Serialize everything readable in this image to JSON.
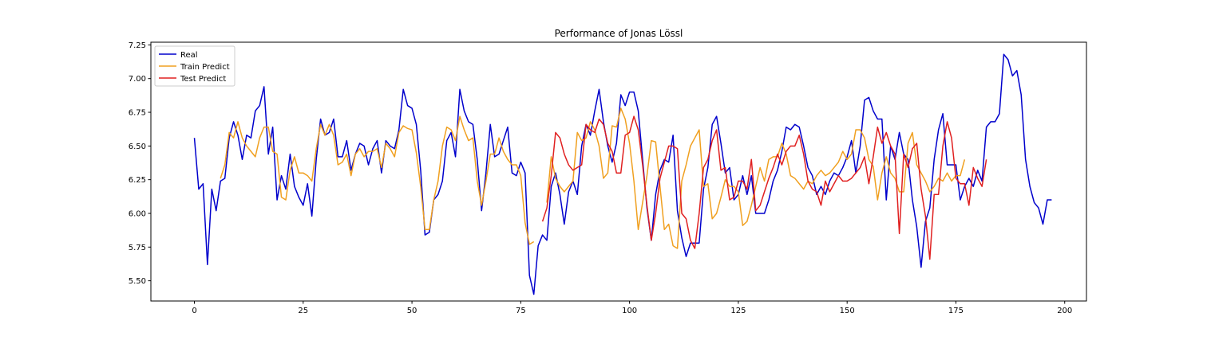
{
  "chart_data": {
    "type": "line",
    "title": "Performance of Jonas Lössl",
    "xlabel": "",
    "ylabel": "",
    "xlim": [
      -10,
      205
    ],
    "ylim": [
      5.35,
      7.27
    ],
    "xticks": [
      0,
      25,
      50,
      75,
      100,
      125,
      150,
      175,
      200
    ],
    "yticks": [
      5.5,
      5.75,
      6.0,
      6.25,
      6.5,
      6.75,
      7.0,
      7.25
    ],
    "ytick_labels": [
      "5.50",
      "5.75",
      "6.00",
      "6.25",
      "6.50",
      "6.75",
      "7.00",
      "7.25"
    ],
    "grid": false,
    "legend_position": "top-left",
    "series": [
      {
        "name": "Real",
        "color": "#0000cc",
        "x_start": 0,
        "values": [
          6.56,
          6.18,
          6.22,
          5.62,
          6.18,
          6.02,
          6.24,
          6.26,
          6.56,
          6.68,
          6.58,
          6.4,
          6.58,
          6.56,
          6.76,
          6.8,
          6.94,
          6.44,
          6.64,
          6.1,
          6.28,
          6.18,
          6.44,
          6.2,
          6.12,
          6.06,
          6.22,
          5.98,
          6.4,
          6.7,
          6.58,
          6.6,
          6.7,
          6.42,
          6.42,
          6.54,
          6.32,
          6.44,
          6.52,
          6.5,
          6.36,
          6.48,
          6.54,
          6.3,
          6.54,
          6.5,
          6.48,
          6.62,
          6.92,
          6.8,
          6.78,
          6.66,
          6.32,
          5.84,
          5.86,
          6.1,
          6.14,
          6.24,
          6.54,
          6.6,
          6.42,
          6.92,
          6.76,
          6.68,
          6.66,
          6.4,
          6.02,
          6.3,
          6.66,
          6.42,
          6.44,
          6.54,
          6.64,
          6.3,
          6.28,
          6.38,
          6.3,
          5.54,
          5.4,
          5.76,
          5.84,
          5.8,
          6.2,
          6.3,
          6.14,
          5.92,
          6.16,
          6.24,
          6.14,
          6.5,
          6.66,
          6.58,
          6.76,
          6.92,
          6.68,
          6.5,
          6.38,
          6.52,
          6.88,
          6.8,
          6.9,
          6.9,
          6.76,
          6.4,
          6.04,
          5.8,
          6.14,
          6.32,
          6.4,
          6.38,
          6.58,
          6.02,
          5.82,
          5.68,
          5.78,
          5.78,
          5.78,
          6.18,
          6.34,
          6.66,
          6.72,
          6.52,
          6.3,
          6.34,
          6.1,
          6.14,
          6.28,
          6.14,
          6.28,
          6.0,
          6.0,
          6.0,
          6.1,
          6.24,
          6.32,
          6.46,
          6.64,
          6.62,
          6.66,
          6.64,
          6.5,
          6.34,
          6.28,
          6.14,
          6.2,
          6.14,
          6.24,
          6.3,
          6.28,
          6.34,
          6.42,
          6.54,
          6.3,
          6.5,
          6.84,
          6.86,
          6.76,
          6.7,
          6.7,
          6.1,
          6.5,
          6.4,
          6.6,
          6.44,
          6.4,
          6.1,
          5.9,
          5.6,
          5.94,
          6.04,
          6.4,
          6.62,
          6.74,
          6.36,
          6.36,
          6.36,
          6.1,
          6.2,
          6.26,
          6.2,
          6.32,
          6.24,
          6.64,
          6.68,
          6.68,
          6.74,
          7.18,
          7.14,
          7.02,
          7.06,
          6.88,
          6.4,
          6.2,
          6.08,
          6.04,
          5.92,
          6.1,
          6.1
        ]
      },
      {
        "name": "Train Predict",
        "color": "#f0a020",
        "x_start": 6,
        "values": [
          6.26,
          6.36,
          6.6,
          6.56,
          6.68,
          6.56,
          6.5,
          6.46,
          6.42,
          6.56,
          6.64,
          6.64,
          6.46,
          6.44,
          6.12,
          6.1,
          6.32,
          6.42,
          6.3,
          6.3,
          6.28,
          6.24,
          6.48,
          6.66,
          6.58,
          6.66,
          6.58,
          6.36,
          6.38,
          6.44,
          6.28,
          6.44,
          6.48,
          6.42,
          6.46,
          6.46,
          6.48,
          6.34,
          6.52,
          6.48,
          6.42,
          6.6,
          6.65,
          6.63,
          6.62,
          6.45,
          6.2,
          5.88,
          5.88,
          6.1,
          6.24,
          6.5,
          6.64,
          6.62,
          6.54,
          6.72,
          6.62,
          6.54,
          6.56,
          6.24,
          6.06,
          6.24,
          6.44,
          6.44,
          6.56,
          6.46,
          6.4,
          6.36,
          6.36,
          6.28,
          5.93,
          5.77,
          5.79
        ]
      },
      {
        "name": "Train Predict",
        "color": "#f0a020",
        "x_start": 81,
        "values": [
          6.08,
          6.42,
          6.26,
          6.2,
          6.16,
          6.2,
          6.24,
          6.6,
          6.54,
          6.56,
          6.68,
          6.62,
          6.5,
          6.26,
          6.3,
          6.65,
          6.64,
          6.78,
          6.7,
          6.52,
          6.24,
          5.88,
          6.08,
          6.28,
          6.54,
          6.53,
          6.2,
          5.88,
          5.92,
          5.76,
          5.74,
          6.24,
          6.36,
          6.5,
          6.56,
          6.62,
          6.2,
          6.22,
          5.96,
          6.0,
          6.12,
          6.25,
          6.2,
          6.2,
          6.16,
          5.91,
          5.94,
          6.06,
          6.2,
          6.34,
          6.24,
          6.4,
          6.42,
          6.42,
          6.52,
          6.44,
          6.28,
          6.26,
          6.22,
          6.18,
          6.24,
          6.22,
          6.28,
          6.32,
          6.28,
          6.3,
          6.34,
          6.38,
          6.46,
          6.4,
          6.44,
          6.62,
          6.62,
          6.56,
          6.4,
          6.35,
          6.1,
          6.3,
          6.42,
          6.3,
          6.26,
          6.16,
          6.16,
          6.52,
          6.6,
          6.36,
          6.3,
          6.24,
          6.16,
          6.2,
          6.26,
          6.24,
          6.3,
          6.24,
          6.28,
          6.28,
          6.4
        ]
      },
      {
        "name": "Test Predict",
        "color": "#e02020",
        "x_start": 80,
        "values": [
          5.94,
          6.04,
          6.28,
          6.6,
          6.56,
          6.44,
          6.36,
          6.32,
          6.34,
          6.36,
          6.66,
          6.62,
          6.6,
          6.7,
          6.66,
          6.52,
          6.46,
          6.3,
          6.3,
          6.58,
          6.6,
          6.72,
          6.62,
          6.36,
          6.06,
          5.8,
          6.0,
          6.26,
          6.38,
          6.5,
          6.5,
          6.48,
          6.0,
          5.96,
          5.8,
          5.74,
          6.0,
          6.34,
          6.4,
          6.54,
          6.62,
          6.32,
          6.34,
          6.1,
          6.12,
          6.24,
          6.24,
          6.18,
          6.4,
          6.02,
          6.06,
          6.16,
          6.26,
          6.34,
          6.44,
          6.36,
          6.46,
          6.5,
          6.5,
          6.58,
          6.44,
          6.24,
          6.18,
          6.16,
          6.06,
          6.24,
          6.16,
          6.22,
          6.28,
          6.24,
          6.24,
          6.26,
          6.3,
          6.34,
          6.42,
          6.22,
          6.42,
          6.64,
          6.52,
          6.6,
          6.5,
          6.44,
          5.85,
          6.44,
          6.34,
          6.48,
          6.52,
          6.18,
          5.98,
          5.66,
          6.14,
          6.14,
          6.5,
          6.68,
          6.56,
          6.26,
          6.22,
          6.22,
          6.06,
          6.34,
          6.26,
          6.2,
          6.4
        ]
      }
    ],
    "legend": [
      {
        "label": "Real",
        "color": "#0000cc"
      },
      {
        "label": "Train Predict",
        "color": "#f0a020"
      },
      {
        "label": "Test Predict",
        "color": "#e02020"
      }
    ]
  }
}
